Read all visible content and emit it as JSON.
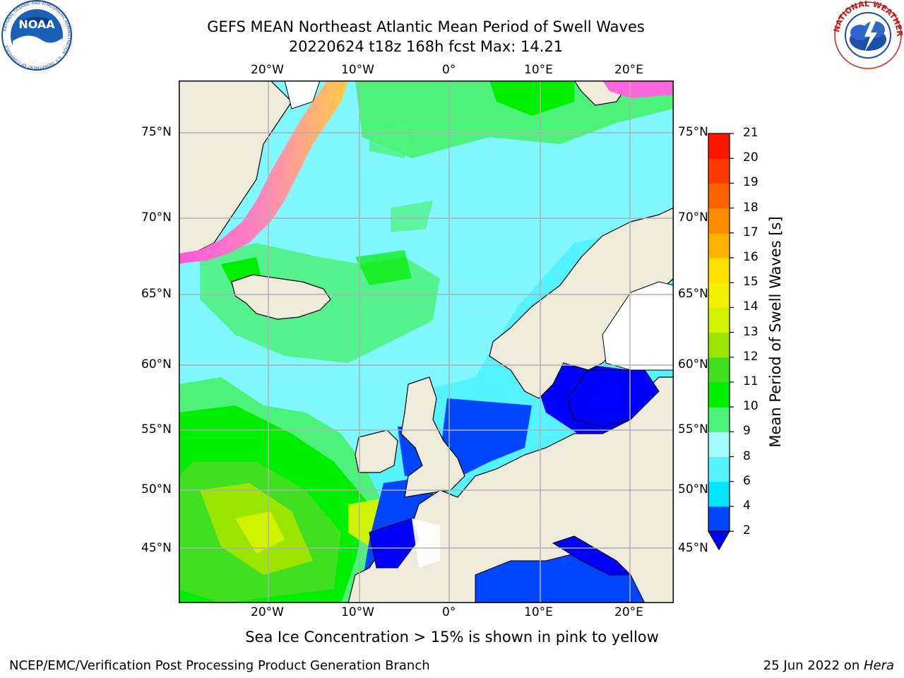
{
  "title": {
    "line1": "GEFS MEAN Northeast Atlantic Mean Period of Swell Waves",
    "line2": "20220624 t18z 168h fcst   Max: 14.21"
  },
  "map": {
    "lon_labels": [
      "20°W",
      "10°W",
      "0°",
      "10°E",
      "20°E"
    ],
    "lat_labels": [
      "75°N",
      "70°N",
      "65°N",
      "60°N",
      "55°N",
      "50°N",
      "45°N"
    ],
    "colors": {
      "land": "#eeebdb",
      "ice_pink": "#ff66dd",
      "ice_yellow": "#ffd33a",
      "grid": "#b0b0b0"
    }
  },
  "colorbar": {
    "title": "Mean Period of Swell Waves [s]",
    "ticks": [
      "2",
      "4",
      "6",
      "8",
      "9",
      "10",
      "11",
      "12",
      "13",
      "14",
      "15",
      "16",
      "17",
      "18",
      "19",
      "20",
      "21"
    ],
    "colors": [
      "#0045ff",
      "#00e5ff",
      "#55f3ff",
      "#a3fbff",
      "#4df27a",
      "#00ee00",
      "#40e020",
      "#9be600",
      "#cff200",
      "#f2f200",
      "#ffe000",
      "#ffb200",
      "#ff8c00",
      "#ff6000",
      "#ff3a00",
      "#ff1400"
    ],
    "under_color": "#0000ff"
  },
  "caption": "Sea Ice Concentration > 15% is shown in pink to yellow",
  "footer": {
    "left": "NCEP/EMC/Verification Post Processing Product Generation Branch",
    "right_prefix": "25 Jun 2022 on ",
    "right_host": "Hera"
  },
  "logos": {
    "noaa": {
      "text": "NOAA",
      "ring": "NATIONAL OCEANIC AND ATMOSPHERIC ADMINISTRATION · U.S. DEPARTMENT OF COMMERCE"
    },
    "nws": {
      "ring": "NATIONAL WEATHER SERVICE"
    }
  }
}
